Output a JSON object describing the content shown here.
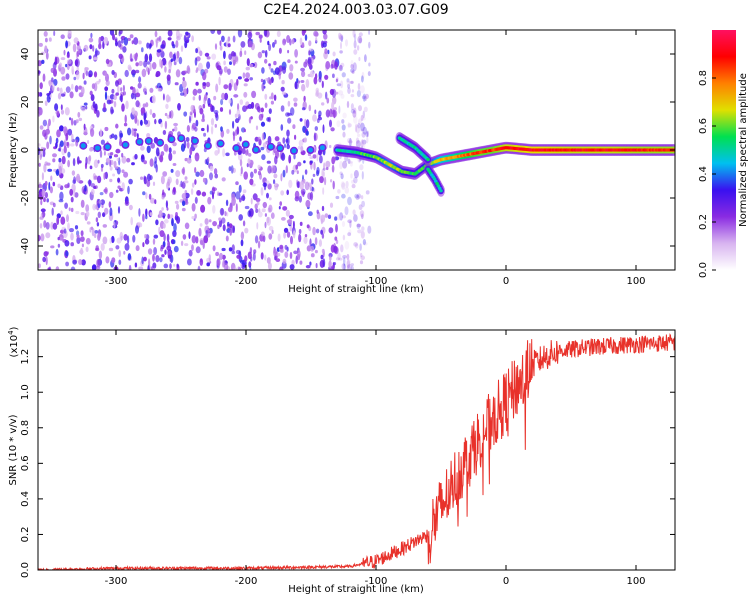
{
  "figure_title": "C2E4.2024.003.03.07.G09",
  "colors": {
    "snr_line": "#e8312a",
    "spectrogram_noise": "#8a2be2",
    "colormap": [
      "#ffffff",
      "#d8b4f0",
      "#8a2be2",
      "#3a10f0",
      "#00c0f0",
      "#00e050",
      "#e0e000",
      "#ff8000",
      "#ff0000",
      "#ff1060"
    ]
  },
  "chart_data": [
    {
      "type": "heatmap",
      "xlabel": "Height of straight line (km)",
      "ylabel": "Frequency (Hz)",
      "xlim": [
        -360,
        130
      ],
      "ylim": [
        -50,
        50
      ],
      "xticks": [
        -300,
        -200,
        -100,
        0,
        100
      ],
      "yticks": [
        -40,
        -20,
        0,
        20,
        40
      ],
      "xtick_labels": [
        "-300",
        "-200",
        "-100",
        "0",
        "100"
      ],
      "ytick_labels": [
        "-40",
        "-20",
        "0",
        "20",
        "40"
      ],
      "colorbar": {
        "label": "Normalized spectral amplitude",
        "range": [
          0,
          1
        ],
        "ticks": [
          0.0,
          0.2,
          0.4,
          0.6,
          0.8
        ],
        "tick_labels": [
          "0.0",
          "0.2",
          "0.4",
          "0.6",
          "0.8"
        ]
      },
      "noise_region_x": [
        -360,
        -115
      ],
      "main_trace": [
        {
          "x": -330,
          "y": 1,
          "amp": 0.3
        },
        {
          "x": -300,
          "y": 2,
          "amp": 0.35
        },
        {
          "x": -270,
          "y": 3,
          "amp": 0.3
        },
        {
          "x": -250,
          "y": 4,
          "amp": 0.35
        },
        {
          "x": -220,
          "y": 2,
          "amp": 0.3
        },
        {
          "x": -190,
          "y": 1,
          "amp": 0.3
        },
        {
          "x": -160,
          "y": 0,
          "amp": 0.35
        },
        {
          "x": -130,
          "y": 0,
          "amp": 0.45
        },
        {
          "x": -115,
          "y": -1,
          "amp": 0.55
        },
        {
          "x": -100,
          "y": -3,
          "amp": 0.6
        },
        {
          "x": -90,
          "y": -6,
          "amp": 0.65
        },
        {
          "x": -80,
          "y": -9,
          "amp": 0.6
        },
        {
          "x": -70,
          "y": -10,
          "amp": 0.55
        },
        {
          "x": -60,
          "y": -6,
          "amp": 0.6
        },
        {
          "x": -50,
          "y": -4,
          "amp": 0.7
        },
        {
          "x": -40,
          "y": -3,
          "amp": 0.75
        },
        {
          "x": -30,
          "y": -2,
          "amp": 0.8
        },
        {
          "x": -20,
          "y": -1,
          "amp": 0.85
        },
        {
          "x": -10,
          "y": 0,
          "amp": 0.85
        },
        {
          "x": 0,
          "y": 1,
          "amp": 0.9
        },
        {
          "x": 20,
          "y": 0,
          "amp": 0.92
        },
        {
          "x": 50,
          "y": 0,
          "amp": 0.9
        },
        {
          "x": 80,
          "y": 0,
          "amp": 0.9
        },
        {
          "x": 110,
          "y": 0,
          "amp": 0.88
        },
        {
          "x": 130,
          "y": 0,
          "amp": 0.88
        }
      ],
      "branch_upper": [
        {
          "x": -82,
          "y": 5
        },
        {
          "x": -70,
          "y": 1
        },
        {
          "x": -60,
          "y": -4
        }
      ],
      "branch_lower": [
        {
          "x": -60,
          "y": -8
        },
        {
          "x": -55,
          "y": -12
        },
        {
          "x": -50,
          "y": -17
        }
      ]
    },
    {
      "type": "line",
      "xlabel": "Height of straight line (km)",
      "ylabel": "SNR (10 * v/v)",
      "scale_label": "(x10",
      "scale_exponent": "4",
      "scale_close": ")",
      "xlim": [
        -360,
        130
      ],
      "ylim": [
        0,
        1.35
      ],
      "xticks": [
        -300,
        -200,
        -100,
        0,
        100
      ],
      "yticks": [
        0.0,
        0.2,
        0.4,
        0.6,
        0.8,
        1.0,
        1.2
      ],
      "xtick_labels": [
        "-300",
        "-200",
        "-100",
        "0",
        "100"
      ],
      "ytick_labels": [
        "0.0",
        "0.2",
        "0.4",
        "0.6",
        "0.8",
        "1.0",
        "1.2"
      ],
      "series": [
        {
          "x": [
            -360,
            -300,
            -200,
            -120,
            -100,
            -80,
            -60,
            -50,
            -40,
            -30,
            -20,
            -10,
            0,
            10,
            20,
            30,
            40,
            60,
            80,
            100,
            130
          ],
          "y": [
            0.0,
            0.01,
            0.01,
            0.02,
            0.05,
            0.12,
            0.2,
            0.35,
            0.5,
            0.62,
            0.75,
            0.85,
            0.95,
            1.05,
            1.15,
            1.2,
            1.23,
            1.25,
            1.26,
            1.27,
            1.28
          ]
        }
      ]
    }
  ]
}
